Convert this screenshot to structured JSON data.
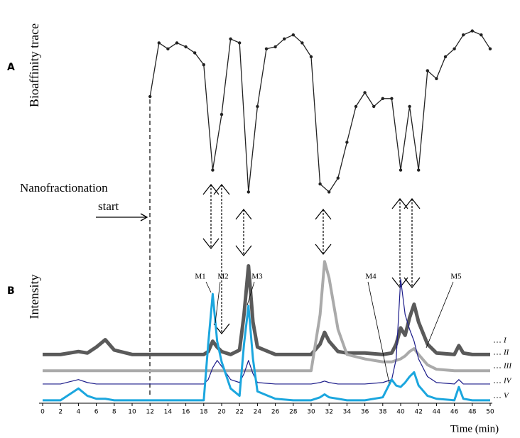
{
  "chart_data": [
    {
      "type": "line",
      "panel_label": "A",
      "y_label": "Bioaffinity trace",
      "annotation": [
        "Nanofractionation",
        "start"
      ],
      "x": [
        12,
        13,
        14,
        15,
        16,
        17,
        18,
        19,
        20,
        21,
        22,
        23,
        24,
        25,
        26,
        27,
        28,
        29,
        30,
        31,
        32,
        33,
        34,
        35,
        36,
        37,
        38,
        39,
        40,
        41,
        42,
        43,
        44,
        45,
        46,
        47,
        48,
        49,
        50
      ],
      "series": [
        {
          "color": "#222222",
          "values": [
            55,
            82,
            79,
            82,
            80,
            77,
            71,
            18,
            46,
            84,
            82,
            7,
            50,
            79,
            80,
            84,
            86,
            82,
            75,
            11,
            7,
            14,
            32,
            50,
            57,
            50,
            54,
            54,
            18,
            50,
            18,
            68,
            64,
            75,
            79,
            86,
            88,
            86,
            79
          ]
        }
      ]
    },
    {
      "type": "line",
      "panel_label": "B",
      "y_label": "Intensity",
      "x_label": "Time (min)",
      "xlim": [
        0,
        50
      ],
      "xticks": [
        0,
        2,
        4,
        6,
        8,
        10,
        12,
        14,
        16,
        18,
        20,
        22,
        24,
        26,
        28,
        30,
        32,
        34,
        36,
        38,
        40,
        42,
        44,
        46,
        48,
        50
      ],
      "peak_labels": [
        "M1",
        "M2",
        "M3",
        "M4",
        "M5"
      ],
      "trace_labels": [
        "I",
        "II",
        "III",
        "IV",
        "V"
      ],
      "x": [
        0,
        2,
        4,
        5,
        6,
        7,
        8,
        10,
        12,
        14,
        16,
        18,
        18.5,
        19,
        19.5,
        20,
        21,
        22,
        22.5,
        23,
        23.5,
        24,
        26,
        28,
        30,
        31,
        31.5,
        32,
        33,
        34,
        36,
        38,
        39,
        39.5,
        40,
        40.5,
        41,
        41.5,
        42,
        43,
        44,
        46,
        46.5,
        47,
        48,
        50
      ],
      "series": [
        {
          "color": "#5a5a5a",
          "values": [
            33,
            33,
            35,
            34,
            38,
            43,
            36,
            33,
            33,
            33,
            33,
            33,
            35,
            42,
            38,
            35,
            33,
            36,
            60,
            93,
            55,
            38,
            33,
            33,
            33,
            40,
            48,
            42,
            35,
            34,
            34,
            33,
            34,
            40,
            51,
            46,
            58,
            67,
            55,
            40,
            34,
            33,
            39,
            34,
            33,
            33
          ]
        },
        {
          "color": "#aaaaaa",
          "values": [
            22,
            22,
            22,
            22,
            22,
            22,
            22,
            22,
            22,
            22,
            22,
            22,
            22,
            22,
            22,
            22,
            22,
            22,
            22,
            22,
            22,
            22,
            22,
            22,
            22,
            60,
            96,
            85,
            50,
            33,
            30,
            28,
            28,
            29,
            30,
            32,
            35,
            37,
            33,
            26,
            23,
            22,
            22,
            22,
            22,
            22
          ]
        },
        {
          "color": "#1c1c8a",
          "values": [
            13,
            13,
            16,
            14,
            13,
            13,
            13,
            13,
            13,
            13,
            13,
            13,
            16,
            24,
            29,
            25,
            16,
            14,
            20,
            29,
            20,
            14,
            13,
            13,
            13,
            14,
            15,
            14,
            13,
            13,
            13,
            14,
            16,
            30,
            84,
            60,
            50,
            42,
            30,
            18,
            14,
            13,
            16,
            13,
            13,
            13
          ]
        },
        {
          "color": "#1ba6de",
          "values": [
            2,
            2,
            10,
            5,
            3,
            3,
            2,
            2,
            2,
            2,
            2,
            2,
            40,
            74,
            42,
            28,
            10,
            5,
            40,
            66,
            30,
            8,
            3,
            2,
            2,
            4,
            6,
            4,
            3,
            2,
            2,
            4,
            16,
            12,
            11,
            14,
            18,
            21,
            12,
            5,
            3,
            2,
            11,
            3,
            2,
            2
          ]
        }
      ]
    }
  ]
}
